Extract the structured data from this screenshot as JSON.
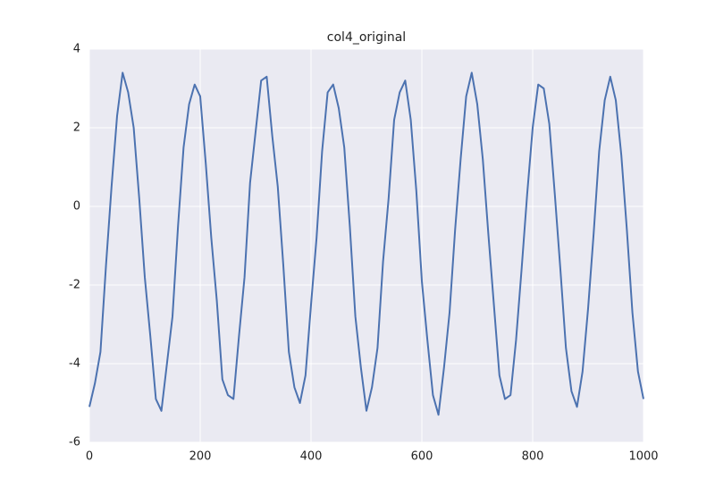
{
  "chart_data": {
    "type": "line",
    "title": "col4_original",
    "x": [
      0,
      10,
      20,
      30,
      40,
      50,
      60,
      70,
      80,
      90,
      100,
      110,
      120,
      130,
      140,
      150,
      160,
      170,
      180,
      190,
      200,
      210,
      220,
      230,
      240,
      250,
      260,
      270,
      280,
      290,
      300,
      310,
      320,
      330,
      340,
      350,
      360,
      370,
      380,
      390,
      400,
      410,
      420,
      430,
      440,
      450,
      460,
      470,
      480,
      490,
      500,
      510,
      520,
      530,
      540,
      550,
      560,
      570,
      580,
      590,
      600,
      610,
      620,
      630,
      640,
      650,
      660,
      670,
      680,
      690,
      700,
      710,
      720,
      730,
      740,
      750,
      760,
      770,
      780,
      790,
      800,
      810,
      820,
      830,
      840,
      850,
      860,
      870,
      880,
      890,
      900,
      910,
      920,
      930,
      940,
      950,
      960,
      970,
      980,
      990,
      1000
    ],
    "values": [
      -5.1,
      -4.5,
      -3.7,
      -1.5,
      0.5,
      2.3,
      3.4,
      2.9,
      2.0,
      0.2,
      -1.8,
      -3.3,
      -4.9,
      -5.2,
      -4.0,
      -2.8,
      -0.5,
      1.5,
      2.6,
      3.1,
      2.8,
      1.1,
      -0.8,
      -2.4,
      -4.4,
      -4.8,
      -4.9,
      -3.3,
      -1.8,
      0.6,
      1.9,
      3.2,
      3.3,
      1.8,
      0.5,
      -1.5,
      -3.7,
      -4.6,
      -5.0,
      -4.3,
      -2.5,
      -0.8,
      1.4,
      2.9,
      3.1,
      2.5,
      1.5,
      -0.5,
      -2.8,
      -4.1,
      -5.2,
      -4.6,
      -3.6,
      -1.4,
      0.2,
      2.2,
      2.9,
      3.2,
      2.2,
      0.4,
      -1.9,
      -3.4,
      -4.8,
      -5.3,
      -4.1,
      -2.7,
      -0.6,
      1.2,
      2.8,
      3.4,
      2.6,
      1.2,
      -0.7,
      -2.5,
      -4.3,
      -4.9,
      -4.8,
      -3.4,
      -1.6,
      0.3,
      2.0,
      3.1,
      3.0,
      2.1,
      0.3,
      -1.6,
      -3.6,
      -4.7,
      -5.1,
      -4.2,
      -2.6,
      -0.7,
      1.4,
      2.7,
      3.3,
      2.7,
      1.3,
      -0.6,
      -2.7,
      -4.2,
      -4.9
    ],
    "color": "#4c72b0",
    "xlim": [
      0,
      1000
    ],
    "xticks": [
      0,
      200,
      400,
      600,
      800,
      1000
    ],
    "ylim": [
      -6,
      4
    ],
    "yticks": [
      -6,
      -4,
      -2,
      0,
      2,
      4
    ],
    "grid": true
  }
}
